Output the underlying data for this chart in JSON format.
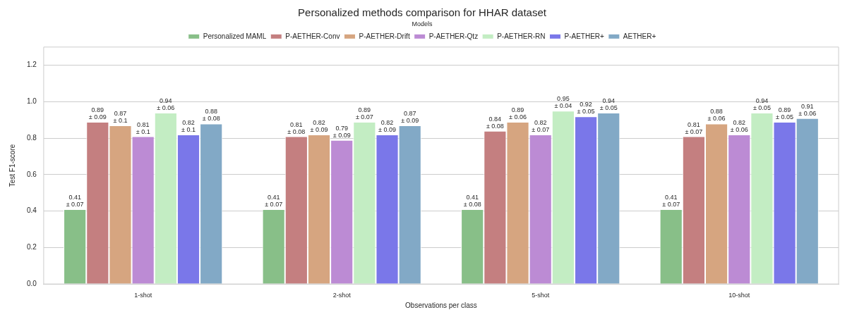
{
  "chart_data": {
    "type": "bar",
    "title": "Personalized methods comparison for HHAR dataset",
    "xlabel": "Observations per class",
    "ylabel": "Test F1-score",
    "legend_title": "Models",
    "categories": [
      "1-shot",
      "2-shot",
      "5-shot",
      "10-shot"
    ],
    "series": [
      {
        "name": "Personalized MAML",
        "color": "#88bf88",
        "values": [
          0.41,
          0.41,
          0.41,
          0.41
        ],
        "value_labels": [
          "0.41\n± 0.07",
          "0.41\n± 0.07",
          "0.41\n± 0.08",
          "0.41\n± 0.07"
        ]
      },
      {
        "name": "P-AETHER-Conv",
        "color": "#c47f80",
        "values": [
          0.89,
          0.81,
          0.84,
          0.81
        ],
        "value_labels": [
          "0.89\n± 0.09",
          "0.81\n± 0.08",
          "0.84\n± 0.08",
          "0.81\n± 0.07"
        ]
      },
      {
        "name": "P-AETHER-Drift",
        "color": "#d6a580",
        "values": [
          0.87,
          0.82,
          0.89,
          0.88
        ],
        "value_labels": [
          "0.87\n± 0.1",
          "0.82\n± 0.09",
          "0.89\n± 0.06",
          "0.88\n± 0.06"
        ]
      },
      {
        "name": "P-AETHER-Qtz",
        "color": "#bc8bd4",
        "values": [
          0.81,
          0.79,
          0.82,
          0.82
        ],
        "value_labels": [
          "0.81\n± 0.1",
          "0.79\n± 0.09",
          "0.82\n± 0.07",
          "0.82\n± 0.06"
        ]
      },
      {
        "name": "P-AETHER-RN",
        "color": "#c3edc3",
        "values": [
          0.94,
          0.89,
          0.95,
          0.94
        ],
        "value_labels": [
          "0.94\n± 0.06",
          "0.89\n± 0.07",
          "0.95\n± 0.04",
          "0.94\n± 0.05"
        ]
      },
      {
        "name": "P-AETHER+",
        "color": "#7a77e9",
        "values": [
          0.82,
          0.82,
          0.92,
          0.89
        ],
        "value_labels": [
          "0.82\n± 0.1",
          "0.82\n± 0.09",
          "0.92\n± 0.05",
          "0.89\n± 0.05"
        ]
      },
      {
        "name": "AETHER+",
        "color": "#82a9c6",
        "values": [
          0.88,
          0.87,
          0.94,
          0.91
        ],
        "value_labels": [
          "0.88\n± 0.08",
          "0.87\n± 0.09",
          "0.94\n± 0.05",
          "0.91\n± 0.06"
        ]
      }
    ],
    "ylim": [
      0,
      1.3
    ],
    "yticks": [
      {
        "value": 0,
        "label": "0.0"
      },
      0.2,
      0.4,
      0.6,
      0.8,
      {
        "value": 1,
        "label": "1.0"
      },
      1.2
    ],
    "grid": "y",
    "legend": "top"
  }
}
